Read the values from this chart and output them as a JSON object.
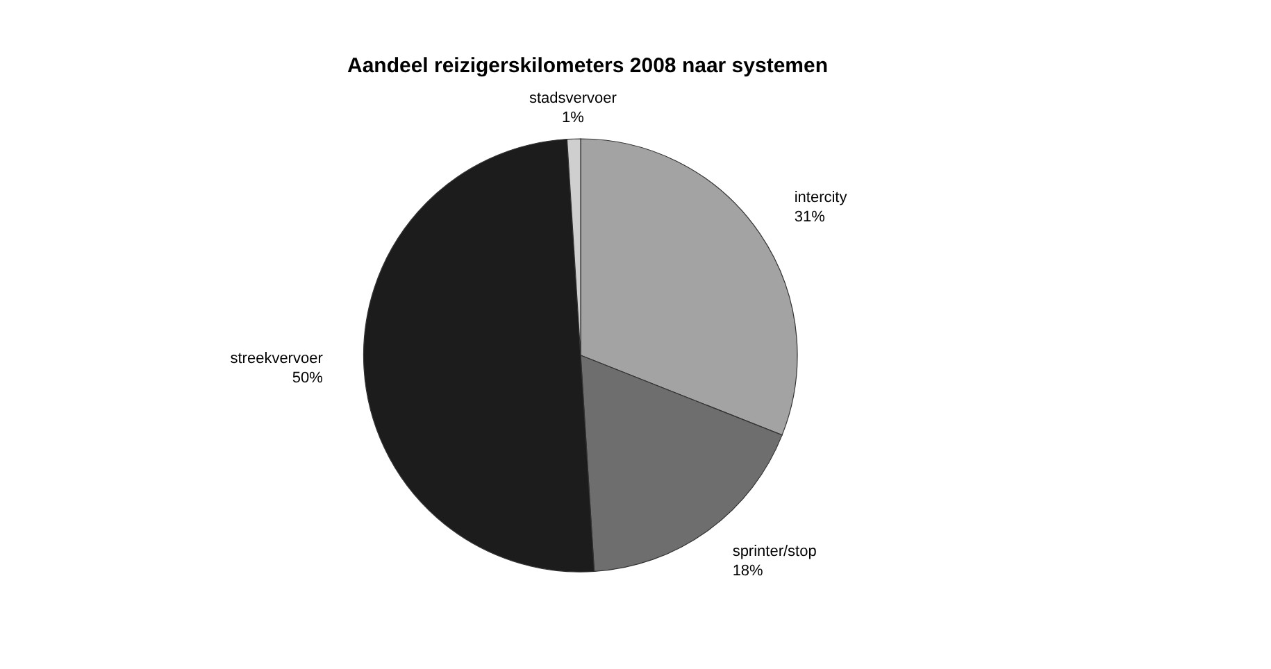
{
  "chart_data": {
    "type": "pie",
    "title": "Aandeel reizigerskilometers 2008 naar systemen",
    "categories": [
      "intercity",
      "sprinter/stop",
      "streekvervoer",
      "stadsvervoer"
    ],
    "values": [
      31,
      18,
      50,
      1
    ],
    "value_labels": [
      "31%",
      "18%",
      "50%",
      "1%"
    ],
    "colors": [
      "#a3a3a3",
      "#6e6e6e",
      "#1c1c1c",
      "#cfcfcf"
    ]
  }
}
